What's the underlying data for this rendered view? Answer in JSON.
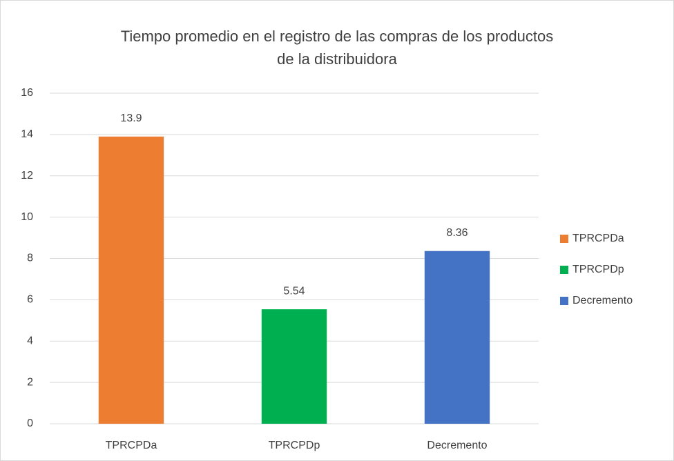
{
  "chart_data": {
    "type": "bar",
    "title": "Tiempo promedio en el registro de las compras de los productos de la distribuidora",
    "categories": [
      "TPRCPDa",
      "TPRCPDp",
      "Decremento"
    ],
    "values": [
      13.9,
      5.54,
      8.36
    ],
    "colors": [
      "#ed7d31",
      "#00b050",
      "#4472c4"
    ],
    "ylim": [
      0,
      16
    ],
    "yticks": [
      0,
      2,
      4,
      6,
      8,
      10,
      12,
      14,
      16
    ],
    "grid": true,
    "legend": "right"
  }
}
